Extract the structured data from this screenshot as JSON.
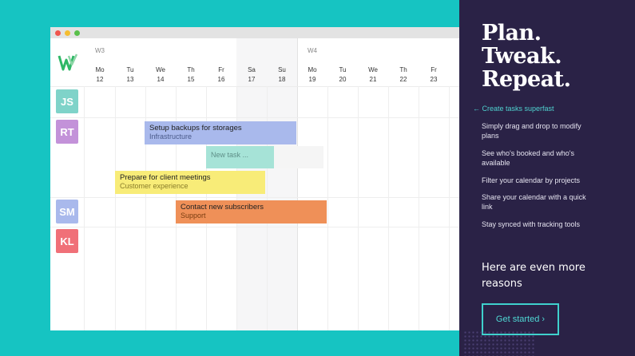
{
  "calendar": {
    "weeks": [
      {
        "label": "W3"
      },
      {
        "label": "W4"
      }
    ],
    "days": [
      {
        "name": "Mo",
        "num": "12"
      },
      {
        "name": "Tu",
        "num": "13"
      },
      {
        "name": "We",
        "num": "14"
      },
      {
        "name": "Th",
        "num": "15"
      },
      {
        "name": "Fr",
        "num": "16"
      },
      {
        "name": "Sa",
        "num": "17"
      },
      {
        "name": "Su",
        "num": "18"
      },
      {
        "name": "Mo",
        "num": "19"
      },
      {
        "name": "Tu",
        "num": "20"
      },
      {
        "name": "We",
        "num": "21"
      },
      {
        "name": "Th",
        "num": "22"
      },
      {
        "name": "Fr",
        "num": "23"
      }
    ],
    "people": [
      {
        "initials": "JS",
        "color": "#7fd3c9"
      },
      {
        "initials": "RT",
        "color": "#c392d9"
      },
      {
        "initials": "SM",
        "color": "#a9b9ec"
      },
      {
        "initials": "KL",
        "color": "#f07078"
      }
    ],
    "tasks": [
      {
        "title": "Setup backups for storages",
        "project": "Infrastructure"
      },
      {
        "title": "Prepare for client meetings",
        "project": "Customer experience"
      },
      {
        "title": "Contact new subscribers",
        "project": "Support"
      }
    ],
    "new_task_label": "New task ..."
  },
  "panel": {
    "headline": [
      "Plan.",
      "Tweak.",
      "Repeat."
    ],
    "back_link": "← Create tasks superfast",
    "features": [
      "Simply drag and drop to modify plans",
      "See who's booked and who's available",
      "Filter your calendar by projects",
      "Share your calendar with a quick link",
      "Stay synced with tracking tools"
    ],
    "reasons": "Here are even more reasons",
    "cta": "Get started ›"
  },
  "colors": {
    "background": "#16c4c2",
    "panel": "#2a2246",
    "accent": "#3fd1cd"
  }
}
